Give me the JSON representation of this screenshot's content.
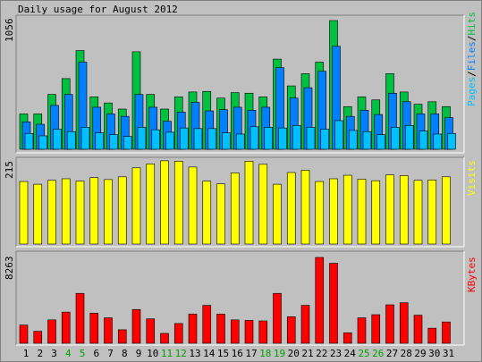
{
  "title": "Daily usage for August 2012",
  "colors": {
    "background": "#c0c0c0",
    "panel": "#c0c0c0",
    "hits": "#00c040",
    "files": "#0080ff",
    "pages": "#00c0ff",
    "visits": "#ffff00",
    "kbytes": "#ff0000",
    "weekend": "#00a000",
    "text": "#000000"
  },
  "legend": {
    "hits_panel": {
      "pages": "Pages",
      "sep1": "/",
      "files": "Files",
      "sep2": "/",
      "hits": "Hits"
    },
    "visits_panel": "Visits",
    "kbytes_panel": "KBytes"
  },
  "chart_data": [
    {
      "type": "bar",
      "name": "hits-files-pages",
      "ymax_label": "1056",
      "ylim": [
        0,
        1056
      ],
      "categories": [
        "1",
        "2",
        "3",
        "4",
        "5",
        "6",
        "7",
        "8",
        "9",
        "10",
        "11",
        "12",
        "13",
        "14",
        "15",
        "16",
        "17",
        "18",
        "19",
        "20",
        "21",
        "22",
        "23",
        "24",
        "25",
        "26",
        "27",
        "28",
        "29",
        "30",
        "31"
      ],
      "weekend_days": [
        "4",
        "5",
        "11",
        "12",
        "18",
        "19",
        "25",
        "26"
      ],
      "series": [
        {
          "name": "Hits",
          "values": [
            290,
            290,
            450,
            580,
            810,
            430,
            380,
            330,
            800,
            450,
            330,
            430,
            470,
            475,
            420,
            465,
            460,
            430,
            740,
            520,
            620,
            715,
            1056,
            350,
            430,
            405,
            620,
            470,
            370,
            390,
            350
          ]
        },
        {
          "name": "Files",
          "values": [
            225,
            205,
            360,
            450,
            715,
            345,
            290,
            270,
            450,
            345,
            230,
            305,
            385,
            315,
            325,
            345,
            320,
            345,
            670,
            420,
            505,
            640,
            845,
            270,
            320,
            285,
            460,
            390,
            290,
            290,
            260
          ]
        },
        {
          "name": "Pages",
          "values": [
            130,
            110,
            165,
            145,
            180,
            135,
            120,
            105,
            180,
            160,
            140,
            175,
            170,
            170,
            135,
            125,
            185,
            180,
            175,
            195,
            180,
            165,
            235,
            155,
            145,
            120,
            180,
            195,
            150,
            125,
            130
          ]
        }
      ]
    },
    {
      "type": "bar",
      "name": "visits",
      "ymax_label": "215",
      "ylim": [
        0,
        215
      ],
      "categories": [
        "1",
        "2",
        "3",
        "4",
        "5",
        "6",
        "7",
        "8",
        "9",
        "10",
        "11",
        "12",
        "13",
        "14",
        "15",
        "16",
        "17",
        "18",
        "19",
        "20",
        "21",
        "22",
        "23",
        "24",
        "25",
        "26",
        "27",
        "28",
        "29",
        "30",
        "31"
      ],
      "series": [
        {
          "name": "Visits",
          "values": [
            160,
            153,
            163,
            167,
            161,
            170,
            165,
            172,
            195,
            205,
            213,
            212,
            197,
            161,
            154,
            182,
            212,
            204,
            153,
            183,
            189,
            160,
            167,
            176,
            166,
            162,
            177,
            175,
            163,
            164,
            172
          ]
        }
      ]
    },
    {
      "type": "bar",
      "name": "kbytes",
      "ymax_label": "8263",
      "ylim": [
        0,
        8263
      ],
      "categories": [
        "1",
        "2",
        "3",
        "4",
        "5",
        "6",
        "7",
        "8",
        "9",
        "10",
        "11",
        "12",
        "13",
        "14",
        "15",
        "16",
        "17",
        "18",
        "19",
        "20",
        "21",
        "22",
        "23",
        "24",
        "25",
        "26",
        "27",
        "28",
        "29",
        "30",
        "31"
      ],
      "series": [
        {
          "name": "KBytes",
          "values": [
            1750,
            1150,
            2250,
            3000,
            4800,
            2900,
            2450,
            1300,
            3250,
            2350,
            950,
            1900,
            2800,
            3650,
            2800,
            2250,
            2200,
            2150,
            4800,
            2550,
            3650,
            8263,
            7700,
            1000,
            2450,
            2750,
            3700,
            3900,
            2700,
            1450,
            2050
          ]
        }
      ]
    }
  ]
}
